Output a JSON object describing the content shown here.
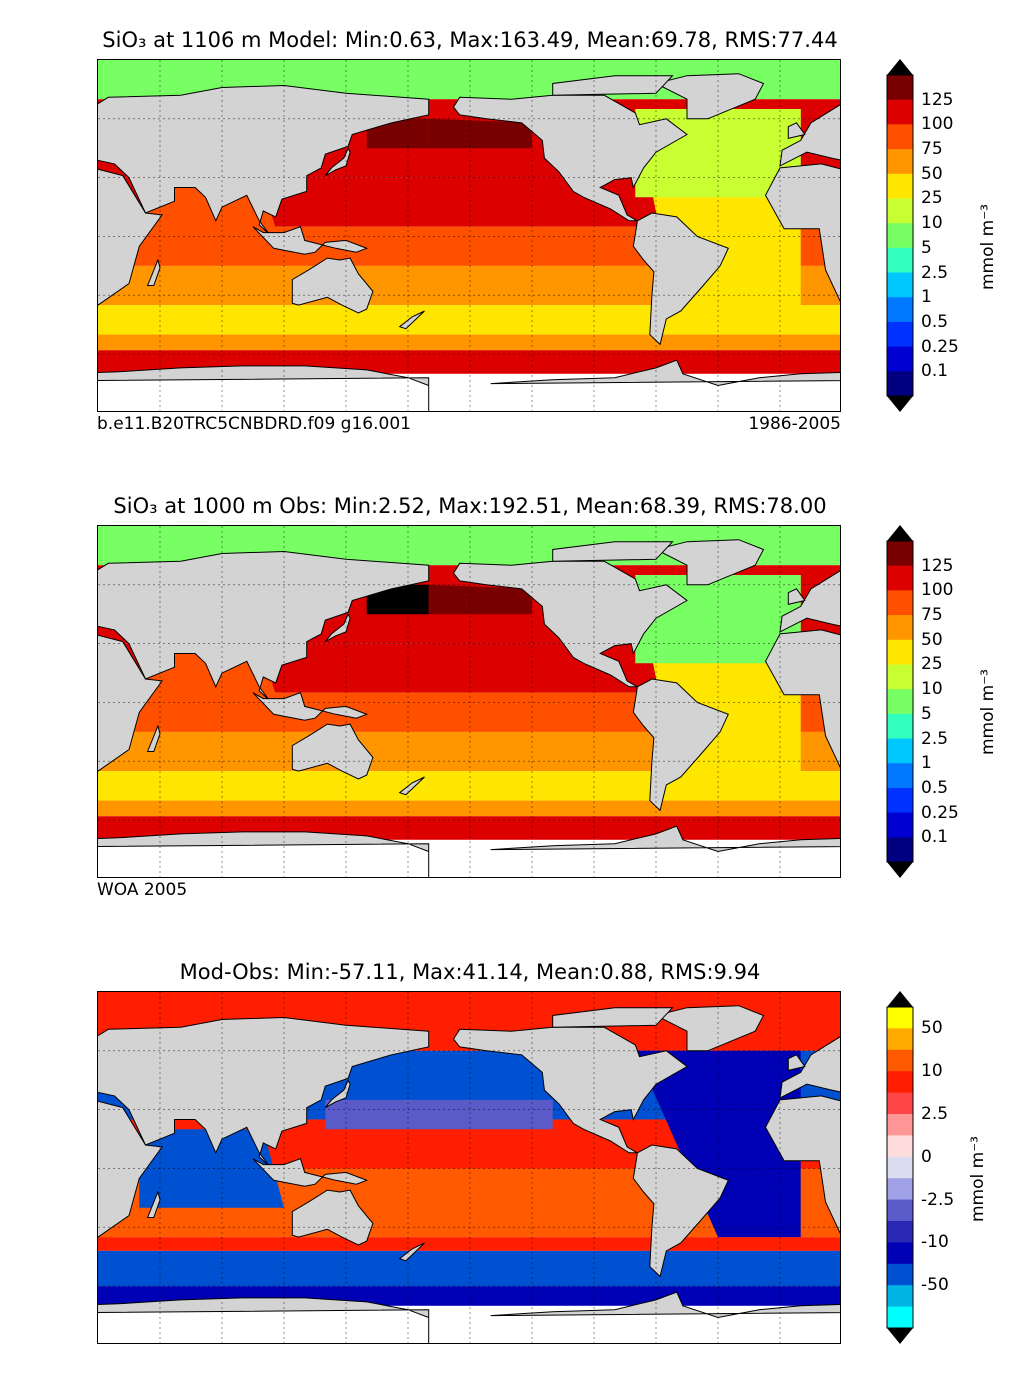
{
  "panels": [
    {
      "title": "SiO₃ at 1106 m Model: Min:0.63, Max:163.49, Mean:69.78, RMS:77.44",
      "footer_left": "b.e11.B20TRC5CNBDRD.f09 g16.001",
      "footer_right": "1986-2005",
      "colorbar": {
        "unit": "mmol m⁻³",
        "tick_labels": [
          "125",
          "100",
          "75",
          "50",
          "25",
          "10",
          "5",
          "2.5",
          "1",
          "0.5",
          "0.25",
          "0.1"
        ],
        "colors": [
          "#780000",
          "#dc0000",
          "#ff5000",
          "#ff9600",
          "#ffe600",
          "#c8ff32",
          "#78ff64",
          "#32ffbe",
          "#00c8ff",
          "#0078ff",
          "#0032ff",
          "#0000d2",
          "#000080"
        ],
        "top_arrow": "#000000",
        "bottom_arrow": "#000000"
      }
    },
    {
      "title": "SiO₃ at 1000 m Obs: Min:2.52, Max:192.51, Mean:68.39, RMS:78.00",
      "footer_left": "WOA 2005",
      "footer_right": "",
      "colorbar": {
        "unit": "mmol m⁻³",
        "tick_labels": [
          "125",
          "100",
          "75",
          "50",
          "25",
          "10",
          "5",
          "2.5",
          "1",
          "0.5",
          "0.25",
          "0.1"
        ],
        "colors": [
          "#780000",
          "#dc0000",
          "#ff5000",
          "#ff9600",
          "#ffe600",
          "#c8ff32",
          "#78ff64",
          "#32ffbe",
          "#00c8ff",
          "#0078ff",
          "#0032ff",
          "#0000d2",
          "#000080"
        ],
        "top_arrow": "#000000",
        "bottom_arrow": "#000000"
      }
    },
    {
      "title": "Mod-Obs: Min:-57.11, Max:41.14, Mean:0.88, RMS:9.94",
      "footer_left": "",
      "footer_right": "",
      "colorbar": {
        "unit": "mmol m⁻³",
        "tick_labels": [
          "50",
          "10",
          "2.5",
          "0",
          "-2.5",
          "-10",
          "-50"
        ],
        "colors": [
          "#ffff00",
          "#ffaa00",
          "#ff5a00",
          "#ff1e00",
          "#ff4646",
          "#ff9696",
          "#ffdcdc",
          "#dcdcf0",
          "#a0a0e6",
          "#5a5ac8",
          "#2828b4",
          "#0000b4",
          "#0050d2",
          "#00b4e6",
          "#00ffff"
        ],
        "top_arrow": "#000000",
        "bottom_arrow": "#000000"
      }
    }
  ]
}
